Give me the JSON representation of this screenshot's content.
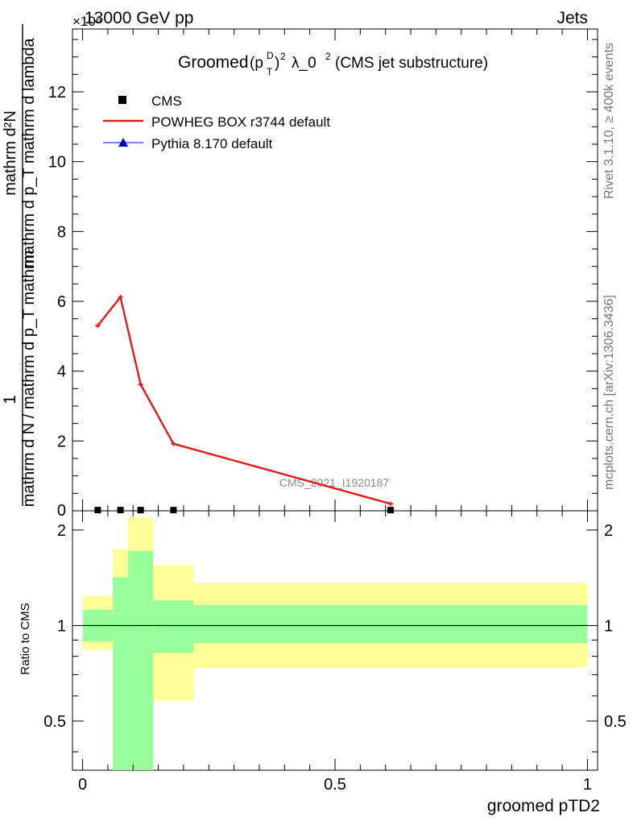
{
  "header": {
    "energy": "13000 GeV pp",
    "scale_exponent_label": "×10⁶",
    "category": "Jets"
  },
  "side": {
    "rivet": "Rivet 3.1.10, ≥ 400k events",
    "mcplots": "mcplots.cern.ch [arXiv:1306.3436]"
  },
  "chart_data": [
    {
      "type": "line",
      "title": "Groomed(p_T^D)^2 λ_0^2 (CMS jet substructure)",
      "title_main": "Groomed",
      "title_rest": "λ_0",
      "title_tail": "(CMS jet substructure)",
      "watermark": "CMS_2021_I1920187",
      "ylabel_numerator": "mathrm d²N",
      "ylabel_denominator": "mathrm d N / mathrm d p_T mathrm d p_T mathrm d lambda",
      "ylabel_prefix": "1",
      "y_scale": "×10^6",
      "xlim": [
        -0.02,
        1.02
      ],
      "ylim": [
        0,
        13.8
      ],
      "y_ticks": [
        2,
        4,
        6,
        8,
        10,
        12
      ],
      "legend": [
        "CMS",
        "POWHEG BOX r3744 default",
        "Pythia 8.170 default"
      ],
      "legend_position": "top-left",
      "series": [
        {
          "name": "CMS",
          "color": "#000000",
          "marker": "square",
          "x": [
            0.03,
            0.075,
            0.115,
            0.18,
            0.61
          ],
          "y": [
            0.02,
            0.02,
            0.02,
            0.02,
            0.02
          ]
        },
        {
          "name": "POWHEG BOX r3744 default",
          "color": "#e31a1c",
          "marker": "none",
          "x": [
            0.03,
            0.075,
            0.115,
            0.18,
            0.61
          ],
          "y": [
            5.3,
            6.12,
            3.62,
            1.92,
            0.2
          ]
        },
        {
          "name": "Pythia 8.170 default",
          "color": "#0000cc",
          "marker": "triangle",
          "x": [],
          "y": []
        }
      ]
    },
    {
      "type": "area",
      "ylabel": "Ratio to CMS",
      "xlabel": "groomed pTD2",
      "xlim": [
        -0.02,
        1.02
      ],
      "ylim": [
        0.35,
        2.3
      ],
      "y_ticks": [
        0.5,
        1,
        2
      ],
      "x_ticks": [
        0,
        0.5,
        1
      ],
      "x_tick_labels": [
        "0",
        "0.5",
        "1"
      ],
      "y_tick_labels": [
        "0.5",
        "1",
        "2"
      ],
      "reference": 1,
      "bands": [
        {
          "x0": 0.0,
          "x1": 0.06,
          "stat_lo": 0.89,
          "stat_hi": 1.12,
          "tot_lo": 0.84,
          "tot_hi": 1.24
        },
        {
          "x0": 0.06,
          "x1": 0.09,
          "stat_lo": 0.35,
          "stat_hi": 1.42,
          "tot_lo": 0.35,
          "tot_hi": 1.74
        },
        {
          "x0": 0.09,
          "x1": 0.14,
          "stat_lo": 0.35,
          "stat_hi": 1.72,
          "tot_lo": 0.35,
          "tot_hi": 2.2
        },
        {
          "x0": 0.14,
          "x1": 0.22,
          "stat_lo": 0.82,
          "stat_hi": 1.2,
          "tot_lo": 0.58,
          "tot_hi": 1.55
        },
        {
          "x0": 0.22,
          "x1": 1.0,
          "stat_lo": 0.88,
          "stat_hi": 1.16,
          "tot_lo": 0.74,
          "tot_hi": 1.36
        }
      ],
      "colors": {
        "total": "#ffff99",
        "stat": "#99ff99",
        "line": "#000000"
      }
    }
  ]
}
